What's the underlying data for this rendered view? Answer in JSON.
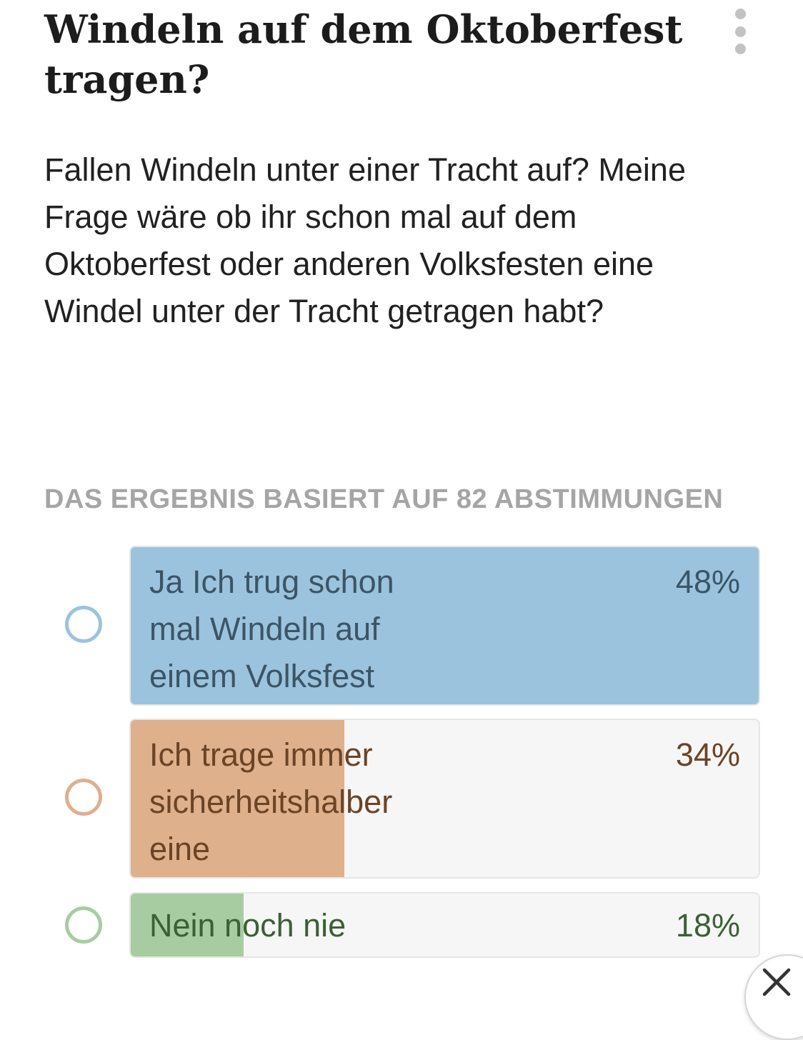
{
  "question": {
    "title": "Windeln auf dem Oktoberfest tragen?",
    "description": "Fallen Windeln unter einer Tracht auf? Meine Frage wäre ob ihr schon mal auf dem Oktoberfest oder anderen Volksfesten eine Windel unter der Tracht getragen habt?"
  },
  "menu_icon": "more-vertical-icon",
  "results": {
    "summary": "DAS ERGEBNIS BASIERT AUF 82 ABSTIMMUNGEN",
    "options": [
      {
        "label": "Ja Ich trug schon mal Windeln auf einem Volksfest",
        "percent_label": "48%",
        "percent": 48,
        "color": "#9cc3dd",
        "radio_color": "#9cc3dd",
        "text_color": "#3b5567"
      },
      {
        "label": "Ich trage immer sicherheitshalber eine",
        "percent_label": "34%",
        "percent": 34,
        "color": "#deb08c",
        "radio_color": "#deb08c",
        "text_color": "#6b4426"
      },
      {
        "label": "Nein noch nie",
        "percent_label": "18%",
        "percent": 18,
        "color": "#a8cca1",
        "radio_color": "#a8cca1",
        "text_color": "#3d5f36"
      }
    ]
  },
  "close_icon": "close-icon"
}
